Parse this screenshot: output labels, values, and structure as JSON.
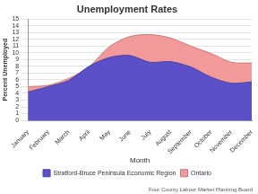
{
  "chart_data": {
    "type": "area",
    "title": "Unemployment Rates",
    "x_label": "Month",
    "y_label": "Percent Unemployed",
    "annotations": [
      "Four County Labour Market Planning Board"
    ],
    "categories": [
      "January",
      "February",
      "March",
      "April",
      "May",
      "June",
      "July",
      "August",
      "September",
      "October",
      "November",
      "December"
    ],
    "series": [
      {
        "name": "Stratford-Bruce Peninsula Economic Region",
        "color": "#5b50c8",
        "values": [
          4.2,
          5.0,
          5.9,
          8.0,
          9.3,
          9.6,
          8.6,
          8.7,
          7.9,
          6.4,
          5.5,
          5.7
        ]
      },
      {
        "name": "Ontario",
        "color": "#f29a9a",
        "values": [
          5.0,
          5.2,
          6.2,
          7.9,
          10.9,
          12.4,
          12.7,
          12.2,
          11.0,
          9.9,
          8.6,
          8.5
        ]
      }
    ],
    "ylim": [
      0,
      15
    ],
    "yticks": [
      0,
      1,
      2,
      3,
      4,
      5,
      6,
      7,
      8,
      9,
      10,
      11,
      12,
      13,
      14,
      15
    ],
    "grid": true,
    "legend": "bottom"
  }
}
